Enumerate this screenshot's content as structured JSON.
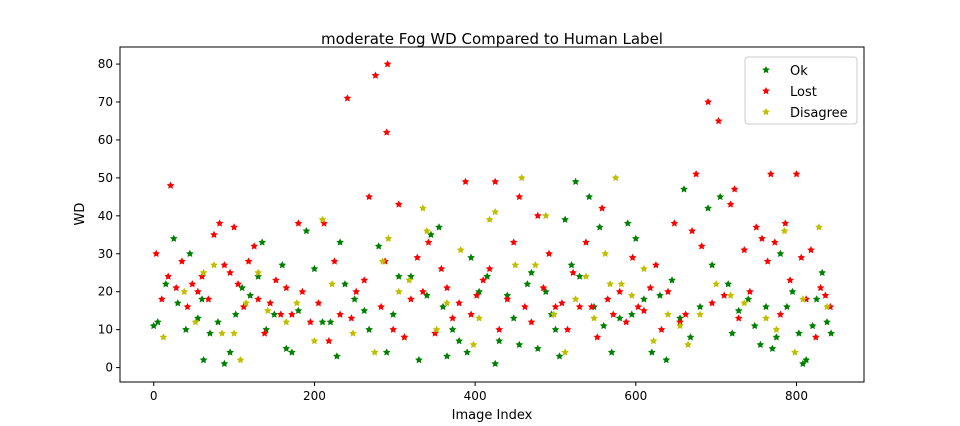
{
  "chart_data": {
    "type": "scatter",
    "title": "moderate Fog WD Compared to Human Label",
    "xlabel": "Image Index",
    "ylabel": "WD",
    "xlim": [
      -42,
      884
    ],
    "ylim": [
      -3.8,
      84.5
    ],
    "xticks": [
      0,
      200,
      400,
      600,
      800
    ],
    "yticks": [
      0,
      10,
      20,
      30,
      40,
      50,
      60,
      70,
      80
    ],
    "grid": false,
    "legend_position": "top-right",
    "marker": "star",
    "series": [
      {
        "name": "Ok",
        "color": "#008000",
        "points": [
          [
            0,
            11
          ],
          [
            5,
            12
          ],
          [
            15,
            22
          ],
          [
            25,
            34
          ],
          [
            30,
            17
          ],
          [
            40,
            10
          ],
          [
            45,
            30
          ],
          [
            55,
            13
          ],
          [
            60,
            18
          ],
          [
            62,
            2
          ],
          [
            70,
            9
          ],
          [
            80,
            12
          ],
          [
            88,
            1
          ],
          [
            95,
            4
          ],
          [
            102,
            14
          ],
          [
            110,
            21
          ],
          [
            120,
            19
          ],
          [
            130,
            24
          ],
          [
            135,
            33
          ],
          [
            140,
            10
          ],
          [
            150,
            14
          ],
          [
            160,
            27
          ],
          [
            165,
            5
          ],
          [
            172,
            4
          ],
          [
            180,
            15
          ],
          [
            190,
            36
          ],
          [
            200,
            26
          ],
          [
            210,
            12
          ],
          [
            220,
            12
          ],
          [
            228,
            3
          ],
          [
            232,
            33
          ],
          [
            238,
            22
          ],
          [
            250,
            18
          ],
          [
            262,
            15
          ],
          [
            268,
            10
          ],
          [
            280,
            32
          ],
          [
            290,
            4
          ],
          [
            298,
            14
          ],
          [
            305,
            24
          ],
          [
            312,
            8
          ],
          [
            320,
            24
          ],
          [
            330,
            2
          ],
          [
            340,
            19
          ],
          [
            345,
            35
          ],
          [
            355,
            37
          ],
          [
            360,
            16
          ],
          [
            365,
            3
          ],
          [
            372,
            10
          ],
          [
            380,
            7
          ],
          [
            390,
            4
          ],
          [
            395,
            29
          ],
          [
            405,
            20
          ],
          [
            415,
            24
          ],
          [
            425,
            1
          ],
          [
            430,
            7
          ],
          [
            440,
            19
          ],
          [
            448,
            13
          ],
          [
            455,
            6
          ],
          [
            465,
            22
          ],
          [
            470,
            25
          ],
          [
            478,
            5
          ],
          [
            488,
            20
          ],
          [
            495,
            14
          ],
          [
            500,
            10
          ],
          [
            505,
            3
          ],
          [
            512,
            39
          ],
          [
            520,
            27
          ],
          [
            525,
            49
          ],
          [
            530,
            24
          ],
          [
            542,
            45
          ],
          [
            548,
            16
          ],
          [
            555,
            37
          ],
          [
            560,
            11
          ],
          [
            570,
            4
          ],
          [
            580,
            13
          ],
          [
            590,
            38
          ],
          [
            595,
            14
          ],
          [
            600,
            34
          ],
          [
            610,
            18
          ],
          [
            620,
            4
          ],
          [
            630,
            19
          ],
          [
            638,
            2
          ],
          [
            645,
            23
          ],
          [
            655,
            13
          ],
          [
            660,
            47
          ],
          [
            668,
            8
          ],
          [
            680,
            16
          ],
          [
            690,
            42
          ],
          [
            695,
            27
          ],
          [
            705,
            45
          ],
          [
            715,
            22
          ],
          [
            720,
            9
          ],
          [
            728,
            15
          ],
          [
            740,
            18
          ],
          [
            748,
            11
          ],
          [
            755,
            6
          ],
          [
            762,
            16
          ],
          [
            770,
            5
          ],
          [
            775,
            8
          ],
          [
            780,
            30
          ],
          [
            788,
            16
          ],
          [
            795,
            20
          ],
          [
            803,
            9
          ],
          [
            808,
            1
          ],
          [
            812,
            2
          ],
          [
            820,
            11
          ],
          [
            825,
            18
          ],
          [
            832,
            25
          ],
          [
            838,
            12
          ],
          [
            843,
            9
          ]
        ]
      },
      {
        "name": "Lost",
        "color": "#ff0000",
        "points": [
          [
            3,
            30
          ],
          [
            10,
            18
          ],
          [
            18,
            24
          ],
          [
            21,
            48
          ],
          [
            28,
            21
          ],
          [
            35,
            28
          ],
          [
            42,
            16
          ],
          [
            48,
            22
          ],
          [
            55,
            20
          ],
          [
            60,
            24
          ],
          [
            68,
            18
          ],
          [
            75,
            35
          ],
          [
            82,
            38
          ],
          [
            88,
            27
          ],
          [
            95,
            25
          ],
          [
            100,
            37
          ],
          [
            105,
            22
          ],
          [
            112,
            16
          ],
          [
            118,
            28
          ],
          [
            125,
            32
          ],
          [
            130,
            18
          ],
          [
            138,
            9
          ],
          [
            145,
            17
          ],
          [
            152,
            23
          ],
          [
            158,
            14
          ],
          [
            165,
            21
          ],
          [
            172,
            14
          ],
          [
            180,
            38
          ],
          [
            185,
            20
          ],
          [
            195,
            12
          ],
          [
            205,
            17
          ],
          [
            212,
            38
          ],
          [
            218,
            7
          ],
          [
            225,
            28
          ],
          [
            232,
            14
          ],
          [
            241,
            71
          ],
          [
            246,
            13
          ],
          [
            252,
            20
          ],
          [
            262,
            23
          ],
          [
            268,
            45
          ],
          [
            276,
            77
          ],
          [
            283,
            16
          ],
          [
            288,
            28
          ],
          [
            290,
            62
          ],
          [
            291,
            80
          ],
          [
            298,
            10
          ],
          [
            305,
            43
          ],
          [
            312,
            8
          ],
          [
            320,
            18
          ],
          [
            328,
            29
          ],
          [
            335,
            20
          ],
          [
            342,
            33
          ],
          [
            350,
            9
          ],
          [
            358,
            26
          ],
          [
            365,
            21
          ],
          [
            372,
            13
          ],
          [
            380,
            17
          ],
          [
            388,
            49
          ],
          [
            395,
            14
          ],
          [
            402,
            19
          ],
          [
            410,
            23
          ],
          [
            418,
            26
          ],
          [
            425,
            49
          ],
          [
            430,
            10
          ],
          [
            440,
            18
          ],
          [
            448,
            33
          ],
          [
            455,
            45
          ],
          [
            462,
            16
          ],
          [
            470,
            12
          ],
          [
            478,
            40
          ],
          [
            485,
            21
          ],
          [
            492,
            30
          ],
          [
            500,
            16
          ],
          [
            508,
            17
          ],
          [
            515,
            10
          ],
          [
            522,
            25
          ],
          [
            530,
            16
          ],
          [
            538,
            33
          ],
          [
            545,
            16
          ],
          [
            552,
            8
          ],
          [
            558,
            42
          ],
          [
            565,
            18
          ],
          [
            572,
            14
          ],
          [
            580,
            20
          ],
          [
            588,
            12
          ],
          [
            596,
            29
          ],
          [
            603,
            16
          ],
          [
            610,
            15
          ],
          [
            618,
            21
          ],
          [
            625,
            27
          ],
          [
            632,
            10
          ],
          [
            640,
            20
          ],
          [
            648,
            38
          ],
          [
            655,
            12
          ],
          [
            662,
            14
          ],
          [
            670,
            36
          ],
          [
            675,
            51
          ],
          [
            682,
            32
          ],
          [
            690,
            70
          ],
          [
            695,
            17
          ],
          [
            703,
            65
          ],
          [
            710,
            19
          ],
          [
            718,
            43
          ],
          [
            723,
            47
          ],
          [
            728,
            13
          ],
          [
            735,
            31
          ],
          [
            742,
            20
          ],
          [
            750,
            37
          ],
          [
            757,
            34
          ],
          [
            764,
            28
          ],
          [
            768,
            51
          ],
          [
            773,
            33
          ],
          [
            780,
            14
          ],
          [
            786,
            38
          ],
          [
            792,
            23
          ],
          [
            800,
            51
          ],
          [
            806,
            29
          ],
          [
            812,
            18
          ],
          [
            818,
            31
          ],
          [
            824,
            8
          ],
          [
            830,
            21
          ],
          [
            836,
            19
          ],
          [
            842,
            16
          ]
        ]
      },
      {
        "name": "Disagree",
        "color": "#bfbf00",
        "points": [
          [
            12,
            8
          ],
          [
            38,
            20
          ],
          [
            52,
            12
          ],
          [
            62,
            25
          ],
          [
            75,
            27
          ],
          [
            85,
            9
          ],
          [
            100,
            9
          ],
          [
            108,
            2
          ],
          [
            115,
            17
          ],
          [
            130,
            25
          ],
          [
            142,
            15
          ],
          [
            165,
            12
          ],
          [
            178,
            17
          ],
          [
            200,
            7
          ],
          [
            210,
            39
          ],
          [
            222,
            22
          ],
          [
            248,
            9
          ],
          [
            275,
            4
          ],
          [
            285,
            28
          ],
          [
            292,
            34
          ],
          [
            305,
            20
          ],
          [
            318,
            23
          ],
          [
            335,
            42
          ],
          [
            340,
            36
          ],
          [
            352,
            10
          ],
          [
            365,
            17
          ],
          [
            382,
            31
          ],
          [
            398,
            6
          ],
          [
            405,
            13
          ],
          [
            418,
            39
          ],
          [
            425,
            41
          ],
          [
            450,
            27
          ],
          [
            458,
            50
          ],
          [
            475,
            27
          ],
          [
            488,
            40
          ],
          [
            498,
            14
          ],
          [
            512,
            4
          ],
          [
            525,
            18
          ],
          [
            538,
            24
          ],
          [
            548,
            13
          ],
          [
            562,
            30
          ],
          [
            568,
            22
          ],
          [
            575,
            50
          ],
          [
            582,
            22
          ],
          [
            595,
            19
          ],
          [
            610,
            26
          ],
          [
            622,
            7
          ],
          [
            640,
            14
          ],
          [
            655,
            11
          ],
          [
            665,
            6
          ],
          [
            680,
            14
          ],
          [
            700,
            22
          ],
          [
            718,
            19
          ],
          [
            735,
            17
          ],
          [
            762,
            13
          ],
          [
            775,
            10
          ],
          [
            785,
            36
          ],
          [
            798,
            4
          ],
          [
            808,
            18
          ],
          [
            828,
            37
          ],
          [
            838,
            16
          ]
        ]
      }
    ]
  }
}
